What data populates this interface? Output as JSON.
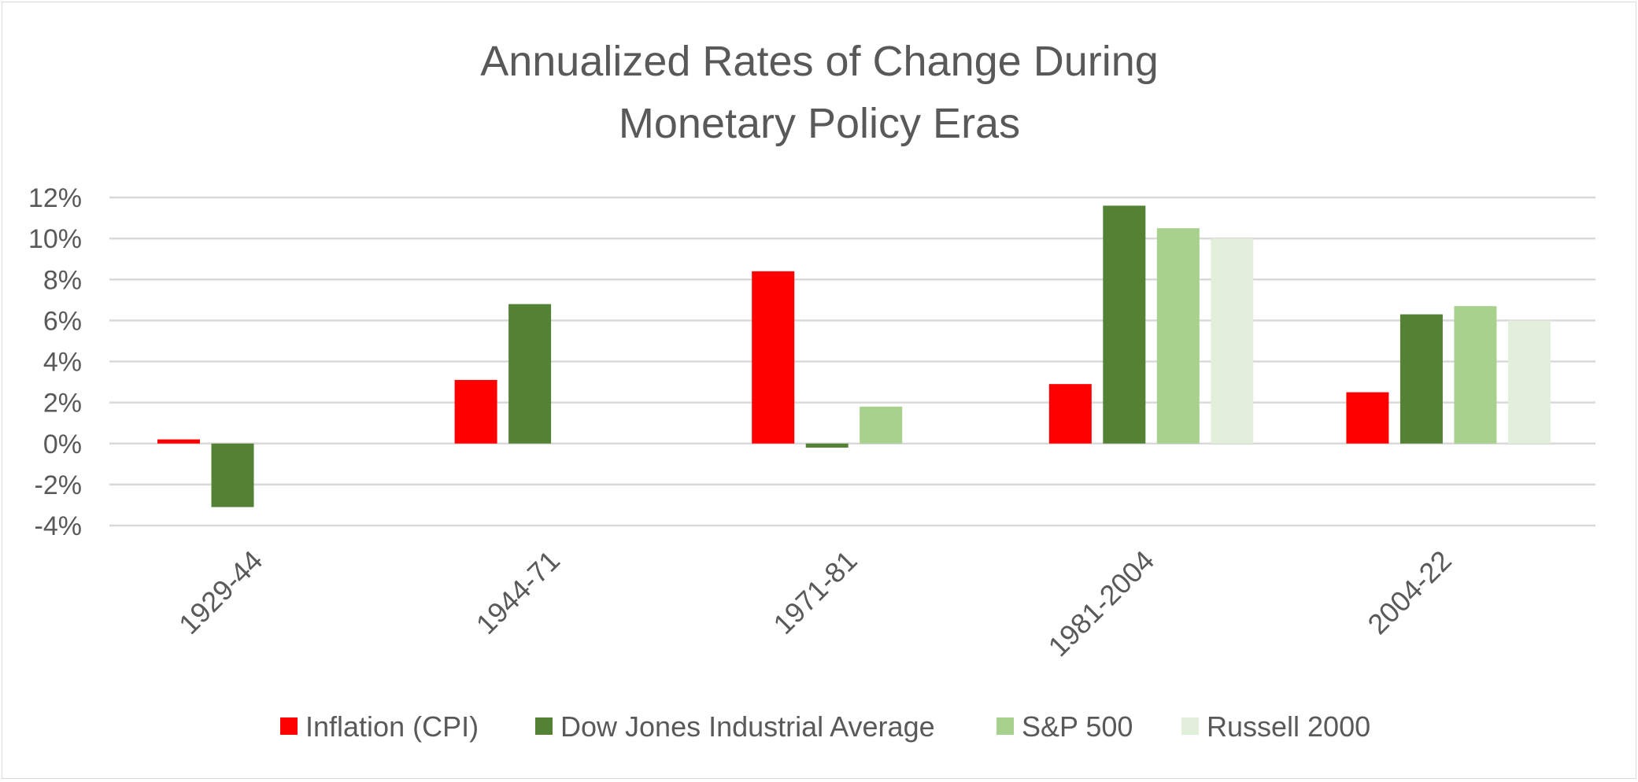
{
  "chart_data": {
    "type": "bar",
    "title": [
      "Annualized Rates of Change During",
      "Monetary Policy Eras"
    ],
    "xlabel": "",
    "ylabel": "",
    "categories": [
      "1929-44",
      "1944-71",
      "1971-81",
      "1981-2004",
      "2004-22"
    ],
    "series": [
      {
        "name": "Inflation (CPI)",
        "color": "#ff0000",
        "values": [
          0.2,
          3.1,
          8.4,
          2.9,
          2.5
        ]
      },
      {
        "name": "Dow Jones Industrial Average",
        "color": "#548235",
        "values": [
          -3.1,
          6.8,
          -0.2,
          11.6,
          6.3
        ]
      },
      {
        "name": "S&P 500",
        "color": "#a9d18e",
        "values": [
          null,
          null,
          1.8,
          10.5,
          6.7
        ]
      },
      {
        "name": "Russell 2000",
        "color": "#e2efda",
        "values": [
          null,
          null,
          null,
          10.0,
          6.0
        ]
      }
    ],
    "ylim": [
      -4,
      12
    ],
    "yticks": [
      -4,
      -2,
      0,
      2,
      4,
      6,
      8,
      10,
      12
    ],
    "ytick_labels": [
      "-4%",
      "-2%",
      "0%",
      "2%",
      "4%",
      "6%",
      "8%",
      "10%",
      "12%"
    ],
    "grid": true,
    "legend_position": "bottom"
  }
}
